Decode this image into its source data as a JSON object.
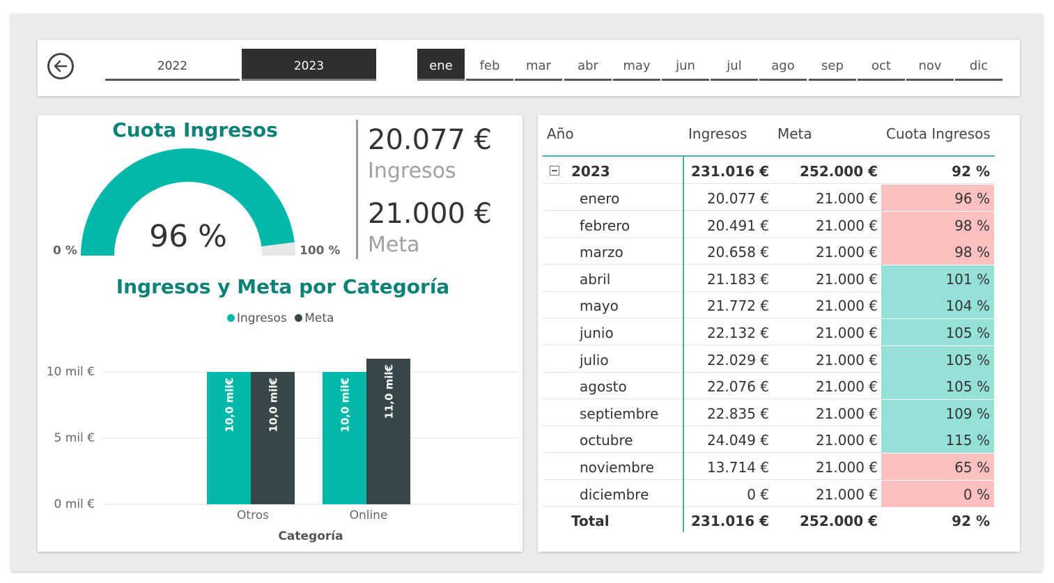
{
  "nav": {
    "back_icon": "arrow-left-circle-icon",
    "years": [
      {
        "label": "2022",
        "selected": false
      },
      {
        "label": "2023",
        "selected": true
      }
    ],
    "months": [
      {
        "label": "ene",
        "selected": true
      },
      {
        "label": "feb",
        "selected": false
      },
      {
        "label": "mar",
        "selected": false
      },
      {
        "label": "abr",
        "selected": false
      },
      {
        "label": "may",
        "selected": false
      },
      {
        "label": "jun",
        "selected": false
      },
      {
        "label": "jul",
        "selected": false
      },
      {
        "label": "ago",
        "selected": false
      },
      {
        "label": "sep",
        "selected": false
      },
      {
        "label": "oct",
        "selected": false
      },
      {
        "label": "nov",
        "selected": false
      },
      {
        "label": "dic",
        "selected": false
      }
    ]
  },
  "gauge": {
    "title": "Cuota Ingresos",
    "value_label": "96 %",
    "value": 0.96,
    "min_label": "0 %",
    "max_label": "100 %"
  },
  "kpis": {
    "ingresos_value": "20.077 €",
    "ingresos_label": "Ingresos",
    "meta_value": "21.000 €",
    "meta_label": "Meta"
  },
  "chart_data": {
    "type": "bar",
    "title": "Ingresos y Meta por Categoría",
    "xlabel": "Categoría",
    "ylabel": "",
    "categories": [
      "Otros",
      "Online"
    ],
    "series": [
      {
        "name": "Ingresos",
        "values": [
          10.0,
          10.0
        ],
        "labels": [
          "10,0 mil€",
          "10,0 mil€"
        ]
      },
      {
        "name": "Meta",
        "values": [
          10.0,
          11.0
        ],
        "labels": [
          "10,0 mil€",
          "11,0 mil€"
        ]
      }
    ],
    "ylim": [
      0,
      10
    ],
    "yticks": [
      {
        "value": 0,
        "label": "0 mil €"
      },
      {
        "value": 5,
        "label": "5 mil €"
      },
      {
        "value": 10,
        "label": "10 mil €"
      }
    ],
    "grid": true,
    "legend_position": "top-center"
  },
  "colors": {
    "ingresos": "#01b8aa",
    "meta": "#374649",
    "title": "#0f8278",
    "below_target": "#fdc0c0",
    "above_target": "#95e1d8",
    "gauge_empty": "#e8e8e8"
  },
  "table": {
    "headers": [
      "Año",
      "Ingresos",
      "Meta",
      "Cuota Ingresos"
    ],
    "group": {
      "label": "2023",
      "ingresos": "231.016 €",
      "meta": "252.000 €",
      "cuota": "92 %"
    },
    "rows": [
      {
        "label": "enero",
        "ingresos": "20.077 €",
        "meta": "21.000 €",
        "cuota": "96 %",
        "status": "below"
      },
      {
        "label": "febrero",
        "ingresos": "20.491 €",
        "meta": "21.000 €",
        "cuota": "98 %",
        "status": "below"
      },
      {
        "label": "marzo",
        "ingresos": "20.658 €",
        "meta": "21.000 €",
        "cuota": "98 %",
        "status": "below"
      },
      {
        "label": "abril",
        "ingresos": "21.183 €",
        "meta": "21.000 €",
        "cuota": "101 %",
        "status": "above"
      },
      {
        "label": "mayo",
        "ingresos": "21.772 €",
        "meta": "21.000 €",
        "cuota": "104 %",
        "status": "above"
      },
      {
        "label": "junio",
        "ingresos": "22.132 €",
        "meta": "21.000 €",
        "cuota": "105 %",
        "status": "above"
      },
      {
        "label": "julio",
        "ingresos": "22.029 €",
        "meta": "21.000 €",
        "cuota": "105 %",
        "status": "above"
      },
      {
        "label": "agosto",
        "ingresos": "22.076 €",
        "meta": "21.000 €",
        "cuota": "105 %",
        "status": "above"
      },
      {
        "label": "septiembre",
        "ingresos": "22.835 €",
        "meta": "21.000 €",
        "cuota": "109 %",
        "status": "above"
      },
      {
        "label": "octubre",
        "ingresos": "24.049 €",
        "meta": "21.000 €",
        "cuota": "115 %",
        "status": "above"
      },
      {
        "label": "noviembre",
        "ingresos": "13.714 €",
        "meta": "21.000 €",
        "cuota": "65 %",
        "status": "below"
      },
      {
        "label": "diciembre",
        "ingresos": "0 €",
        "meta": "21.000 €",
        "cuota": "0 %",
        "status": "below"
      }
    ],
    "total": {
      "label": "Total",
      "ingresos": "231.016 €",
      "meta": "252.000 €",
      "cuota": "92 %"
    }
  }
}
